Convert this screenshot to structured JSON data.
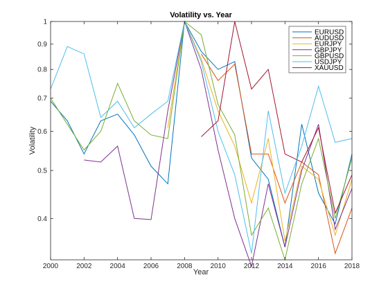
{
  "chart_data": {
    "type": "line",
    "title": "Volatility vs. Year",
    "xlabel": "Year",
    "ylabel": "Volatility",
    "xlim": [
      2000,
      2018
    ],
    "ylim": [
      0.33,
      1.0
    ],
    "yscale": "log",
    "grid": false,
    "legend_position": "top-right",
    "x_ticks": [
      2000,
      2002,
      2004,
      2006,
      2008,
      2010,
      2012,
      2014,
      2016,
      2018
    ],
    "x_tick_labels": [
      "2000",
      "2002",
      "2004",
      "2006",
      "2008",
      "2010",
      "2012",
      "2014",
      "2016",
      "2018"
    ],
    "y_ticks": [
      0.4,
      0.5,
      0.6,
      0.7,
      0.8,
      0.9,
      1.0
    ],
    "y_tick_labels": [
      "0.4",
      "0.5",
      "0.6",
      "0.7",
      "0.8",
      "0.9",
      "1"
    ],
    "series": [
      {
        "name": "EURUSD",
        "color": "#0072BD",
        "x": [
          2000,
          2001,
          2002,
          2003,
          2004,
          2005,
          2006,
          2007,
          2008,
          2009,
          2010,
          2011,
          2012,
          2013,
          2014,
          2015,
          2016,
          2017,
          2018
        ],
        "values": [
          0.69,
          0.63,
          0.54,
          0.63,
          0.65,
          0.59,
          0.51,
          0.47,
          1.0,
          0.87,
          0.8,
          0.83,
          0.53,
          0.48,
          0.35,
          0.62,
          0.45,
          0.39,
          0.54
        ]
      },
      {
        "name": "AUDUSD",
        "color": "#D95319",
        "x": [
          2009,
          2010,
          2011,
          2012,
          2013,
          2014,
          2015,
          2016,
          2017,
          2018
        ],
        "values": [
          0.86,
          0.76,
          0.82,
          0.54,
          0.54,
          0.43,
          0.52,
          0.49,
          0.34,
          0.42
        ]
      },
      {
        "name": "EURJPY",
        "color": "#EDB120",
        "x": [
          2007,
          2008,
          2009,
          2010,
          2011,
          2012,
          2013,
          2014,
          2015,
          2016,
          2017,
          2018
        ],
        "values": [
          0.61,
          1.0,
          0.84,
          0.66,
          0.56,
          0.43,
          0.58,
          0.36,
          0.51,
          0.48,
          0.37,
          0.48
        ]
      },
      {
        "name": "GBPJPY",
        "color": "#7E2F8E",
        "x": [
          2002,
          2003,
          2004,
          2005,
          2006,
          2007,
          2008,
          2009,
          2010,
          2011,
          2012,
          2013,
          2014,
          2015,
          2016,
          2017,
          2018
        ],
        "values": [
          0.525,
          0.52,
          0.56,
          0.4,
          0.398,
          0.66,
          1.0,
          0.8,
          0.55,
          0.4,
          0.32,
          0.47,
          0.35,
          0.5,
          0.62,
          0.38,
          0.46
        ]
      },
      {
        "name": "GBPUSD",
        "color": "#77AC30",
        "x": [
          2000,
          2001,
          2002,
          2003,
          2004,
          2005,
          2006,
          2007,
          2008,
          2009,
          2010,
          2011,
          2012,
          2013,
          2014,
          2015,
          2016,
          2017,
          2018
        ],
        "values": [
          0.7,
          0.62,
          0.55,
          0.6,
          0.75,
          0.63,
          0.59,
          0.58,
          1.0,
          0.94,
          0.68,
          0.59,
          0.37,
          0.42,
          0.33,
          0.47,
          0.58,
          0.4,
          0.53
        ]
      },
      {
        "name": "USDJPY",
        "color": "#4DBEEE",
        "x": [
          2000,
          2001,
          2002,
          2003,
          2004,
          2005,
          2006,
          2007,
          2008,
          2009,
          2010,
          2011,
          2012,
          2013,
          2014,
          2015,
          2016,
          2017,
          2018
        ],
        "values": [
          0.73,
          0.89,
          0.86,
          0.64,
          0.69,
          0.61,
          0.65,
          0.69,
          1.0,
          0.83,
          0.6,
          0.49,
          0.34,
          0.66,
          0.45,
          0.56,
          0.74,
          0.57,
          0.58
        ]
      },
      {
        "name": "XAUUSD",
        "color": "#A2142F",
        "x": [
          2009,
          2010,
          2011,
          2012,
          2013,
          2014,
          2015,
          2016,
          2017,
          2018
        ],
        "values": [
          0.585,
          0.63,
          1.0,
          0.73,
          0.8,
          0.54,
          0.52,
          0.61,
          0.41,
          0.49
        ]
      }
    ]
  }
}
